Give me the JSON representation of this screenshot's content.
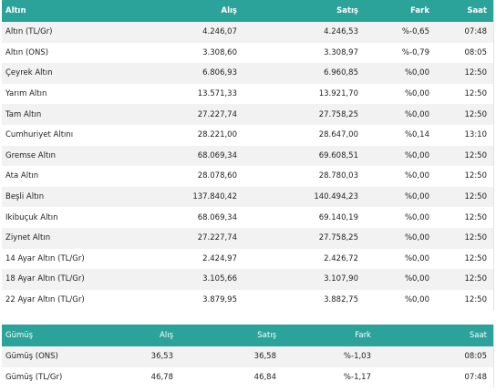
{
  "gold": {
    "headers": {
      "name": "Altın",
      "buy": "Alış",
      "sell": "Satış",
      "diff": "Fark",
      "time": "Saat"
    },
    "rows": [
      {
        "name": "Altın (TL/Gr)",
        "buy": "4.246,07",
        "sell": "4.246,53",
        "diff": "%-0,65",
        "time": "07:48"
      },
      {
        "name": "Altın (ONS)",
        "buy": "3.308,60",
        "sell": "3.308,97",
        "diff": "%-0,79",
        "time": "08:05"
      },
      {
        "name": "Çeyrek Altın",
        "buy": "6.806,93",
        "sell": "6.960,85",
        "diff": "%0,00",
        "time": "12:50"
      },
      {
        "name": "Yarım Altın",
        "buy": "13.571,33",
        "sell": "13.921,70",
        "diff": "%0,00",
        "time": "12:50"
      },
      {
        "name": "Tam Altın",
        "buy": "27.227,74",
        "sell": "27.758,25",
        "diff": "%0,00",
        "time": "12:50"
      },
      {
        "name": "Cumhuriyet Altını",
        "buy": "28.221,00",
        "sell": "28.647,00",
        "diff": "%0,14",
        "time": "13:10"
      },
      {
        "name": "Gremse Altın",
        "buy": "68.069,34",
        "sell": "69.608,51",
        "diff": "%0,00",
        "time": "12:50"
      },
      {
        "name": "Ata Altın",
        "buy": "28.078,60",
        "sell": "28.780,03",
        "diff": "%0,00",
        "time": "12:50"
      },
      {
        "name": "Beşli Altın",
        "buy": "137.840,42",
        "sell": "140.494,23",
        "diff": "%0,00",
        "time": "12:50"
      },
      {
        "name": "İkibuçuk Altın",
        "buy": "68.069,34",
        "sell": "69.140,19",
        "diff": "%0,00",
        "time": "12:50"
      },
      {
        "name": "Ziynet Altın",
        "buy": "27.227,74",
        "sell": "27.758,25",
        "diff": "%0,00",
        "time": "12:50"
      },
      {
        "name": "14 Ayar Altın (TL/Gr)",
        "buy": "2.424,97",
        "sell": "2.426,72",
        "diff": "%0,00",
        "time": "12:50"
      },
      {
        "name": "18 Ayar Altın (TL/Gr)",
        "buy": "3.105,66",
        "sell": "3.107,90",
        "diff": "%0,00",
        "time": "12:50"
      },
      {
        "name": "22 Ayar Altın (TL/Gr)",
        "buy": "3.879,95",
        "sell": "3.882,75",
        "diff": "%0,00",
        "time": "12:50"
      }
    ]
  },
  "silver": {
    "headers": {
      "name": "Gümüş",
      "buy": "Alış",
      "sell": "Satış",
      "diff": "Fark",
      "time": "Saat"
    },
    "rows": [
      {
        "name": "Gümüş (ONS)",
        "buy": "36,53",
        "sell": "36,58",
        "diff": "%-1,03",
        "time": "08:05"
      },
      {
        "name": "Gümüş (TL/Gr)",
        "buy": "46,78",
        "sell": "46,84",
        "diff": "%-1,17",
        "time": "07:48"
      }
    ]
  },
  "colors": {
    "header_bg": "#2ca39a",
    "header_text": "#ffffff",
    "stripe_bg": "#f2f2f2"
  }
}
